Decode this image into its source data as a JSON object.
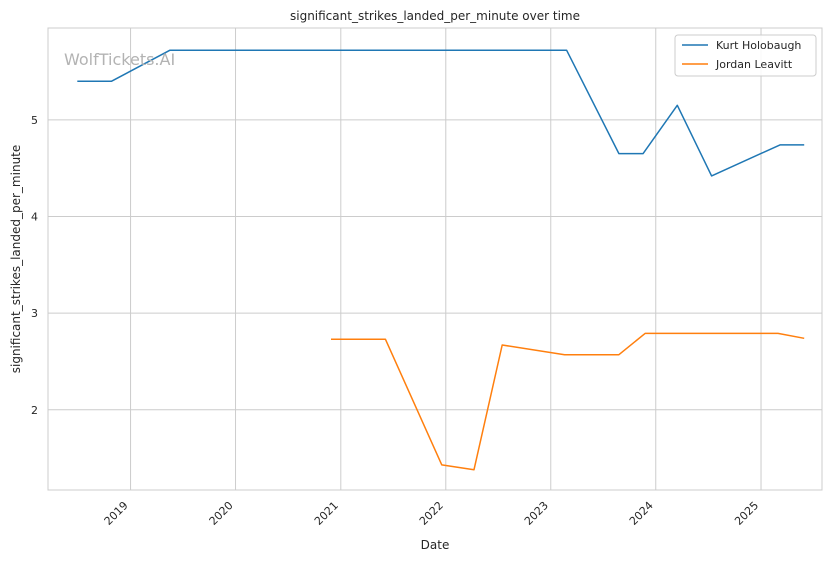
{
  "watermark": "WolfTickets.AI",
  "chart_data": {
    "type": "line",
    "title": "significant_strikes_landed_per_minute over time",
    "xlabel": "Date",
    "ylabel": "significant_strikes_landed_per_minute",
    "x_axis_type": "date",
    "xlim": [
      "2018-03-20",
      "2025-08-01"
    ],
    "ylim": [
      1.17,
      5.95
    ],
    "x_ticks": [
      {
        "date": "2019-01-01",
        "label": "2019"
      },
      {
        "date": "2020-01-01",
        "label": "2020"
      },
      {
        "date": "2021-01-01",
        "label": "2021"
      },
      {
        "date": "2022-01-01",
        "label": "2022"
      },
      {
        "date": "2023-01-01",
        "label": "2023"
      },
      {
        "date": "2024-01-01",
        "label": "2024"
      },
      {
        "date": "2025-01-01",
        "label": "2025"
      }
    ],
    "y_ticks": [
      2,
      3,
      4,
      5
    ],
    "grid": true,
    "legend_position": "top-right",
    "series": [
      {
        "name": "Kurt Holobaugh",
        "color": "#1f77b4",
        "points": [
          {
            "x": "2018-06-30",
            "y": 5.4
          },
          {
            "x": "2018-10-27",
            "y": 5.4
          },
          {
            "x": "2019-05-18",
            "y": 5.72
          },
          {
            "x": "2023-02-25",
            "y": 5.72
          },
          {
            "x": "2023-08-26",
            "y": 4.65
          },
          {
            "x": "2023-11-18",
            "y": 4.65
          },
          {
            "x": "2024-03-16",
            "y": 5.15
          },
          {
            "x": "2024-07-13",
            "y": 4.42
          },
          {
            "x": "2025-03-08",
            "y": 4.74
          },
          {
            "x": "2025-05-31",
            "y": 4.74
          }
        ]
      },
      {
        "name": "Jordan Leavitt",
        "color": "#ff7f0e",
        "points": [
          {
            "x": "2020-11-28",
            "y": 2.73
          },
          {
            "x": "2021-06-05",
            "y": 2.73
          },
          {
            "x": "2021-12-18",
            "y": 1.43
          },
          {
            "x": "2022-04-09",
            "y": 1.38
          },
          {
            "x": "2022-07-16",
            "y": 2.67
          },
          {
            "x": "2023-02-18",
            "y": 2.57
          },
          {
            "x": "2023-08-26",
            "y": 2.57
          },
          {
            "x": "2023-11-25",
            "y": 2.79
          },
          {
            "x": "2025-03-01",
            "y": 2.79
          },
          {
            "x": "2025-05-31",
            "y": 2.74
          }
        ]
      }
    ]
  }
}
